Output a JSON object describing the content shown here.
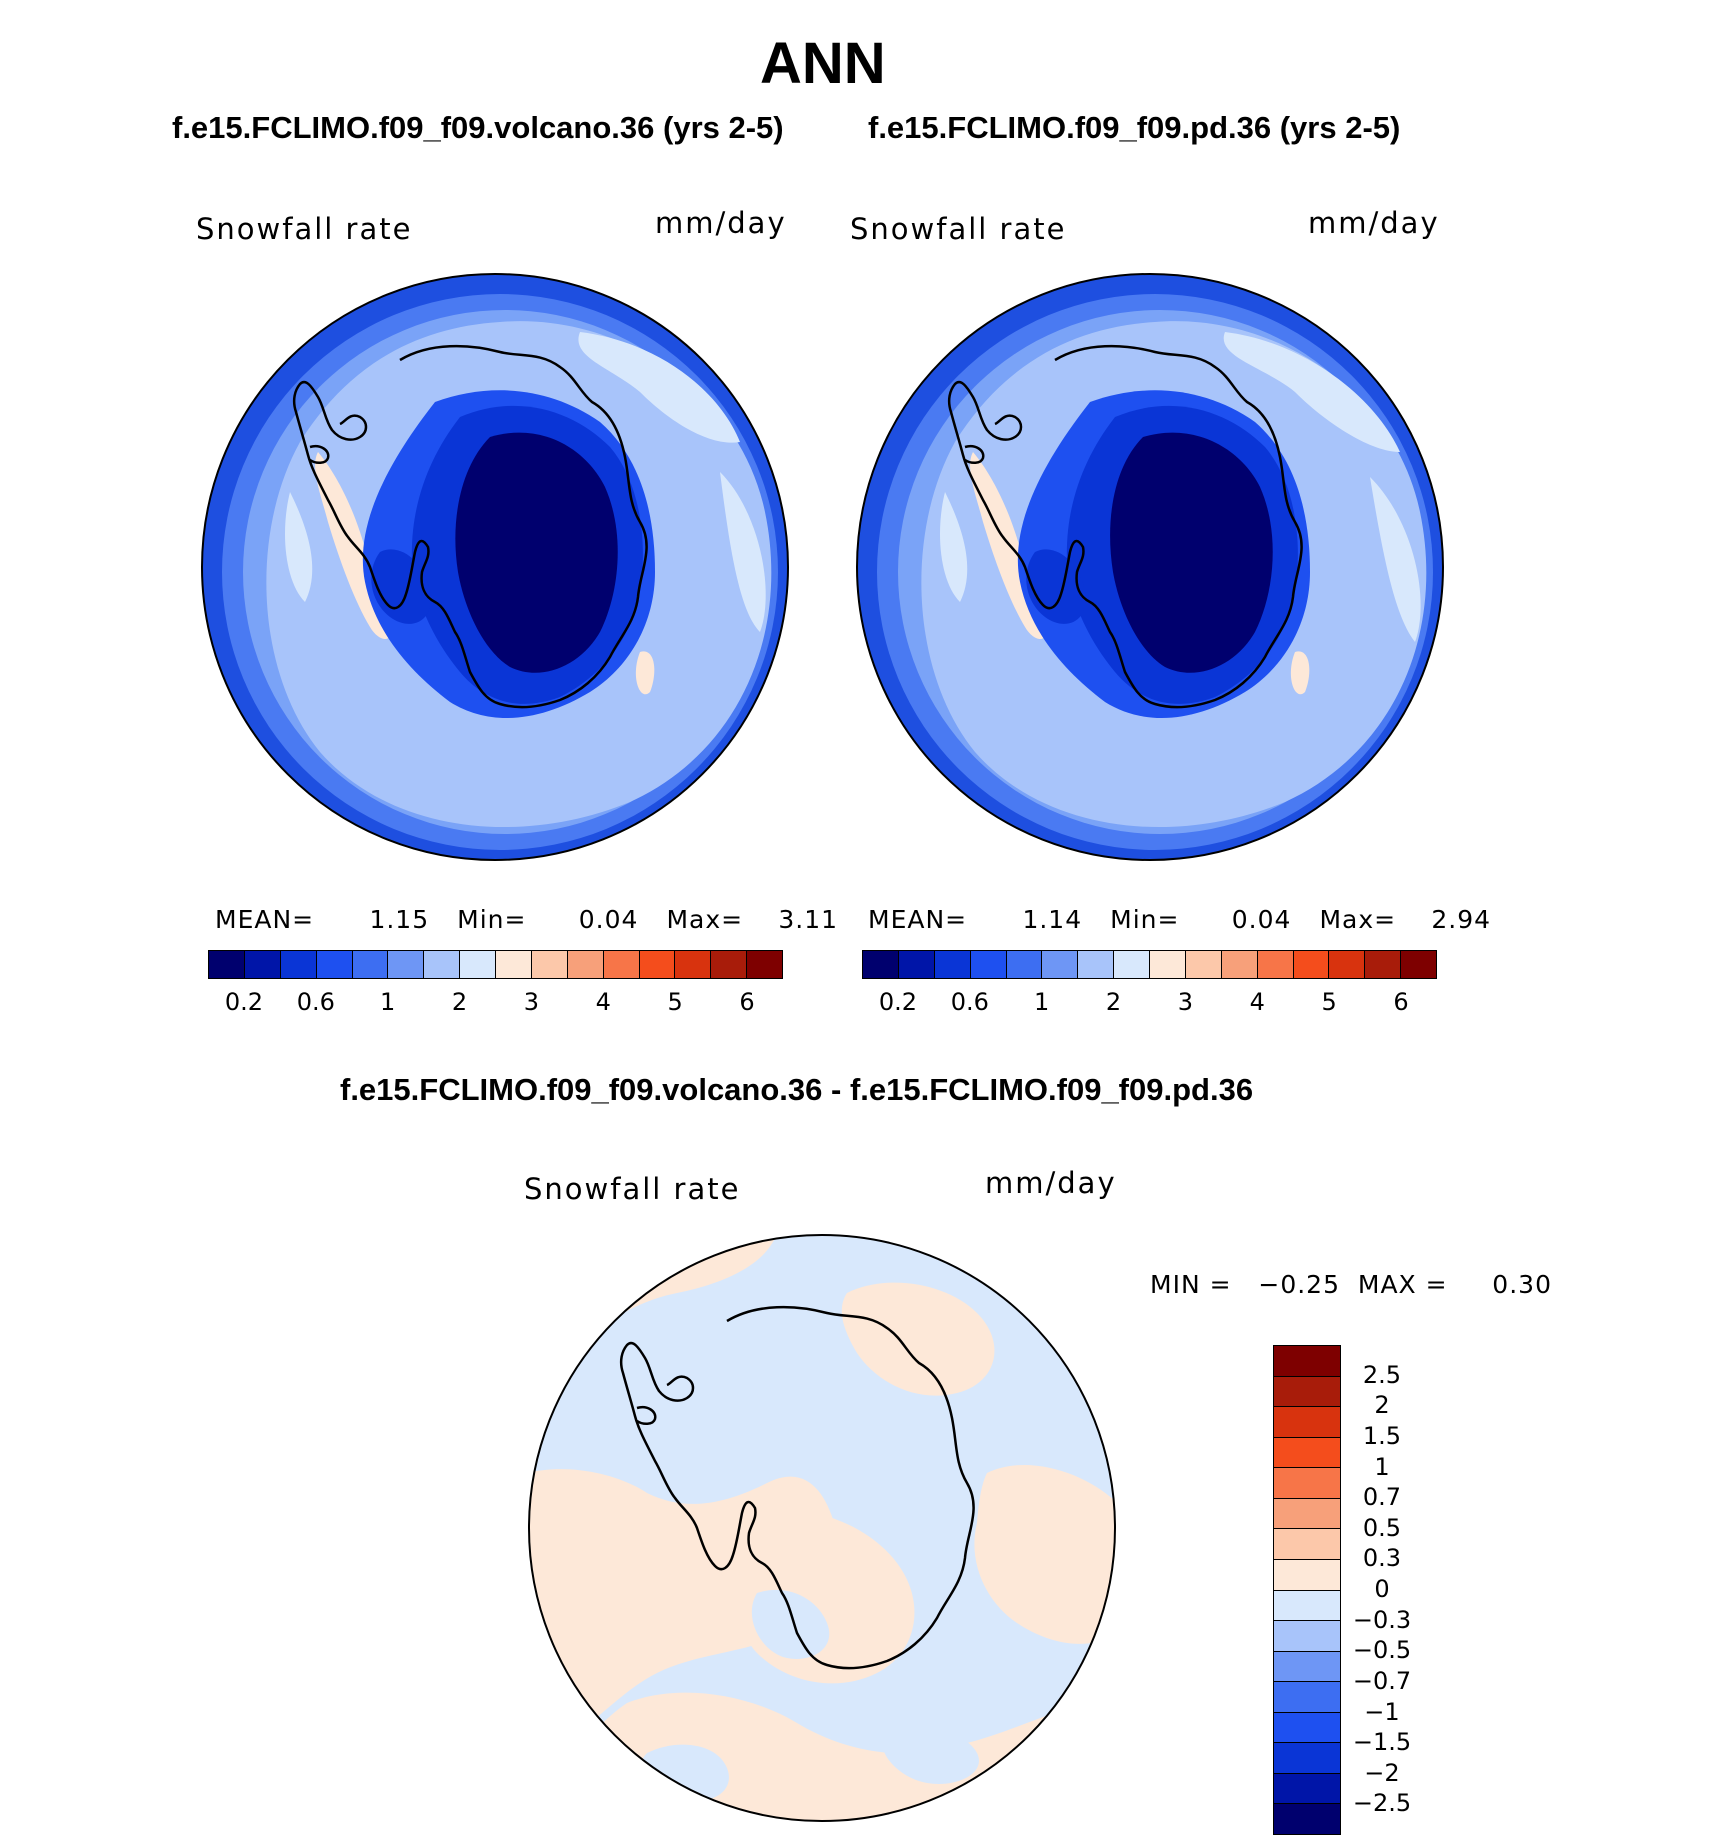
{
  "title": "ANN",
  "panels": [
    {
      "case_title": "f.e15.FCLIMO.f09_f09.volcano.36 (yrs 2-5)",
      "variable": "Snowfall rate",
      "units": "mm/day",
      "stats": {
        "mean_label": "MEAN=",
        "mean": "1.15",
        "min_label": "Min=",
        "min": "0.04",
        "max_label": "Max=",
        "max": "3.11"
      }
    },
    {
      "case_title": "f.e15.FCLIMO.f09_f09.pd.36 (yrs 2-5)",
      "variable": "Snowfall rate",
      "units": "mm/day",
      "stats": {
        "mean_label": "MEAN=",
        "mean": "1.14",
        "min_label": "Min=",
        "min": "0.04",
        "max_label": "Max=",
        "max": "2.94"
      }
    }
  ],
  "abs_colorbar": {
    "colors": [
      "#00006e",
      "#0015a8",
      "#0a35d6",
      "#1e50f0",
      "#3d6ef2",
      "#6e96f5",
      "#a8c4fa",
      "#d8e8fc",
      "#fde8d8",
      "#fcc8aa",
      "#f7a07a",
      "#f77548",
      "#f44d1c",
      "#d8330e",
      "#a81c0a",
      "#7e0000"
    ],
    "tick_labels": [
      "0.2",
      "0.6",
      "1",
      "2",
      "3",
      "4",
      "5",
      "6"
    ]
  },
  "difference": {
    "title": "f.e15.FCLIMO.f09_f09.volcano.36 - f.e15.FCLIMO.f09_f09.pd.36",
    "variable": "Snowfall rate",
    "units": "mm/day",
    "minmax_text": "MIN =   −0.25  MAX =     0.30",
    "colorbar": {
      "colors": [
        "#7e0000",
        "#a81c0a",
        "#d8330e",
        "#f44d1c",
        "#f77548",
        "#f7a07a",
        "#fcc8aa",
        "#fde8d8",
        "#d8e8fc",
        "#a8c4fa",
        "#6e96f5",
        "#3d6ef2",
        "#1e50f0",
        "#0a35d6",
        "#0015a8",
        "#00006e"
      ],
      "tick_labels": [
        "2.5",
        "2",
        "1.5",
        "1",
        "0.7",
        "0.5",
        "0.3",
        "0",
        "−0.3",
        "−0.5",
        "−0.7",
        "−1",
        "−1.5",
        "−2",
        "−2.5"
      ]
    }
  },
  "map_colors": {
    "ocean_outer": "#1e4fe0",
    "ocean_ring2": "#4a7af2",
    "ocean_ring3": "#7aa3f7",
    "ocean_main": "#a8c4fa",
    "ocean_light": "#d8e8fc",
    "coast_warm": "#fde8d8",
    "interior_1": "#1e50f0",
    "interior_2": "#0a35d6",
    "interior_core": "#00006e",
    "diff_pos": "#fde8d8",
    "diff_neg": "#d8e8fc"
  }
}
